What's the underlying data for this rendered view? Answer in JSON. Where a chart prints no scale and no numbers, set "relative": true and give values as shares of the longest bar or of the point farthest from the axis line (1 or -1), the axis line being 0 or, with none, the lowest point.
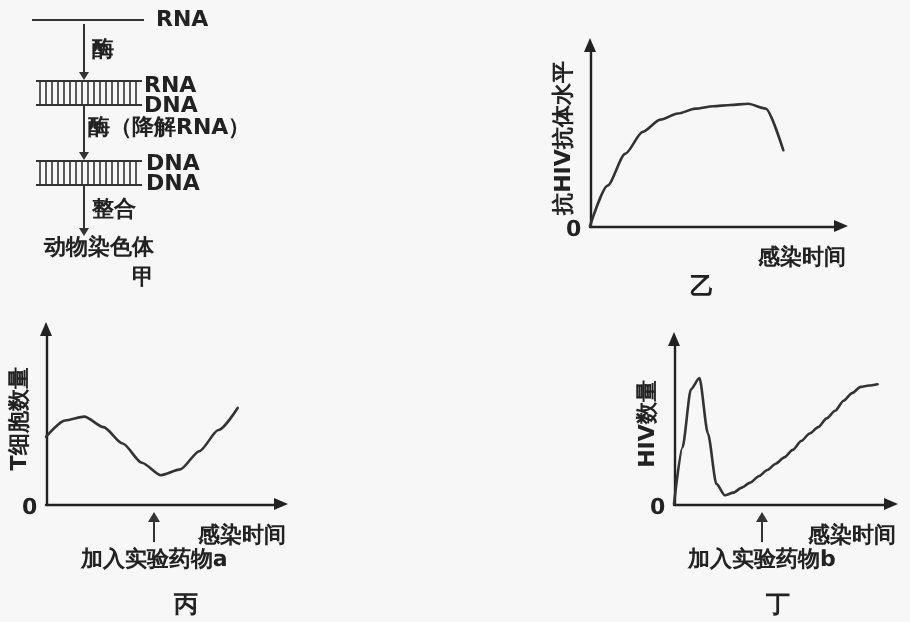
{
  "chart_data": [
    {
      "type": "other",
      "title": "甲",
      "annotations": [
        "RNA",
        "酶",
        "RNA",
        "DNA",
        "酶（降解RNA）",
        "DNA",
        "DNA",
        "整合",
        "动物染色体"
      ]
    },
    {
      "type": "line",
      "title": "乙",
      "xlabel": "感染时间",
      "ylabel": "抗HIV抗体水平",
      "relative": true,
      "marker": "none",
      "annotations": [
        "0"
      ],
      "categories": [
        null,
        null,
        null,
        null,
        null,
        null,
        null,
        null,
        null,
        null,
        null,
        null,
        null,
        null,
        null
      ],
      "series": [
        {
          "color": "#333333",
          "values": [
            0,
            0.33,
            0.59,
            0.77,
            0.87,
            0.92,
            0.96,
            0.98,
            0.99,
            1.0,
            0.96,
            0.62,
            null,
            null,
            null
          ]
        }
      ]
    },
    {
      "type": "line",
      "title": "丙",
      "xlabel": "感染时间",
      "ylabel": "T细胞数量",
      "relative": true,
      "marker": "none",
      "annotations": [
        "0",
        "加入实验药物a"
      ],
      "categories": [
        null,
        null,
        null,
        null,
        null,
        null,
        null,
        null,
        null,
        null,
        null,
        null,
        null
      ],
      "series": [
        {
          "color": "#333333",
          "values": [
            0.7,
            0.87,
            0.91,
            0.8,
            0.63,
            0.43,
            0.3,
            0.36,
            0.55,
            0.77,
            1.0,
            null,
            null
          ]
        }
      ]
    },
    {
      "type": "line",
      "title": "丁",
      "xlabel": "感染时间",
      "ylabel": "HIV数量",
      "relative": true,
      "marker": "none",
      "annotations": [
        "0",
        "加入实验药物b"
      ],
      "categories": [
        null,
        null,
        null,
        null,
        null,
        null,
        null,
        null,
        null,
        null,
        null,
        null,
        null,
        null,
        null,
        null,
        null,
        null,
        null,
        null,
        null,
        null,
        null,
        null,
        null,
        null
      ],
      "series": [
        {
          "color": "#333333",
          "values": [
            0,
            0.45,
            0.91,
            1.0,
            0.56,
            0.16,
            0.07,
            0.09,
            0.13,
            0.17,
            0.22,
            0.27,
            0.32,
            0.37,
            0.43,
            0.5,
            0.56,
            0.61,
            0.68,
            0.74,
            0.82,
            0.88,
            0.93,
            0.94,
            0.95,
            null
          ]
        }
      ]
    }
  ]
}
